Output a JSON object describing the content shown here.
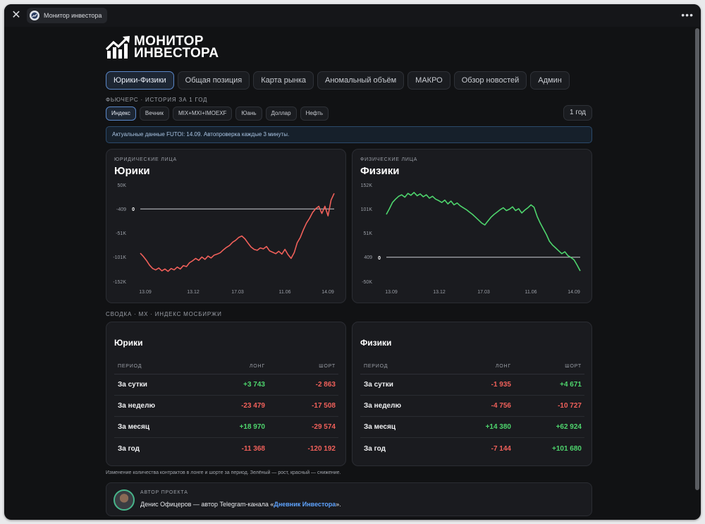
{
  "window": {
    "tab_title": "Монитор инвестора"
  },
  "logo": {
    "line1": "МОНИТОР",
    "line2": "ИНВЕСТОРА"
  },
  "nav": [
    "Юрики-Физики",
    "Общая позиция",
    "Карта рынка",
    "Аномальный объём",
    "МАКРО",
    "Обзор новостей",
    "Админ"
  ],
  "futures_label": "ФЬЮЧЕРС · ИСТОРИЯ ЗА 1 ГОД",
  "instruments": [
    "Индекс",
    "Вечник",
    "MIX+MXI+IMOEXF",
    "Юань",
    "Доллар",
    "Нефть"
  ],
  "period": "1 год",
  "notice": "Актуальные данные FUTOI: 14.09. Автопроверка каждые 3 минуты.",
  "summary_label": "СВОДКА · MX · ИНДЕКС МОСБИРЖИ",
  "footnote": "Изменение количества контрактов в лонге и шорте за период. Зелёный — рост, красный — снижение.",
  "author": {
    "kicker": "АВТОР ПРОЕКТА",
    "text": "Денис Офицеров — автор Telegram-канала «",
    "link": "Дневник Инвестора",
    "end": "»."
  },
  "colors": {
    "positive": "#4ed56d",
    "negative": "#f0605a",
    "accent": "#5a87c9"
  },
  "chart_data": [
    {
      "type": "line",
      "kicker": "ЮРИДИЧЕСКИЕ ЛИЦА",
      "title": "Юрики",
      "x_ticks": [
        "13.09",
        "13.12",
        "17.03",
        "11.06",
        "14.09"
      ],
      "y_ticks": [
        "50K",
        "-409",
        "-51K",
        "-101K",
        "-152K"
      ],
      "zero_label": "0",
      "ylim": [
        -152000,
        50000
      ],
      "zero_value": -409,
      "series": [
        {
          "color": "#f0605a",
          "values": [
            -93000,
            -100000,
            -108000,
            -118000,
            -125000,
            -128000,
            -124000,
            -130000,
            -126000,
            -131000,
            -125000,
            -128000,
            -122000,
            -126000,
            -119000,
            -121000,
            -113000,
            -109000,
            -104000,
            -108000,
            -101000,
            -106000,
            -99000,
            -103000,
            -97000,
            -95000,
            -92000,
            -86000,
            -81000,
            -77000,
            -70000,
            -66000,
            -60000,
            -57000,
            -63000,
            -72000,
            -80000,
            -85000,
            -87000,
            -82000,
            -84000,
            -79000,
            -88000,
            -91000,
            -94000,
            -89000,
            -95000,
            -85000,
            -96000,
            -104000,
            -92000,
            -71000,
            -60000,
            -44000,
            -30000,
            -20000,
            -8000,
            0,
            5000,
            -10000,
            5000,
            -15000,
            18000,
            32000
          ]
        }
      ]
    },
    {
      "type": "line",
      "kicker": "ФИЗИЧЕСКИЕ ЛИЦА",
      "title": "Физики",
      "x_ticks": [
        "13.09",
        "13.12",
        "17.03",
        "11.06",
        "14.09"
      ],
      "y_ticks": [
        "152K",
        "101K",
        "51K",
        "409",
        "-50K"
      ],
      "zero_label": "0",
      "ylim": [
        -50000,
        152000
      ],
      "zero_value": 409,
      "series": [
        {
          "color": "#4ed56d",
          "values": [
            90000,
            102000,
            115000,
            122000,
            128000,
            131000,
            126000,
            134000,
            130000,
            136000,
            129000,
            133000,
            127000,
            131000,
            124000,
            128000,
            122000,
            119000,
            115000,
            120000,
            112000,
            118000,
            110000,
            114000,
            108000,
            104000,
            100000,
            95000,
            90000,
            84000,
            78000,
            72000,
            68000,
            76000,
            84000,
            90000,
            95000,
            100000,
            104000,
            98000,
            101000,
            106000,
            98000,
            102000,
            93000,
            99000,
            104000,
            110000,
            105000,
            86000,
            72000,
            60000,
            48000,
            34000,
            26000,
            20000,
            14000,
            8000,
            12000,
            4000,
            0,
            -5000,
            -16000,
            -28000
          ]
        }
      ]
    }
  ],
  "summaries": [
    {
      "title": "Юрики",
      "headers": [
        "ПЕРИОД",
        "ЛОНГ",
        "ШОРТ"
      ],
      "rows": [
        {
          "period": "За сутки",
          "long": "+3 743",
          "short": "-2 863"
        },
        {
          "period": "За неделю",
          "long": "-23 479",
          "short": "-17 508"
        },
        {
          "period": "За месяц",
          "long": "+18 970",
          "short": "-29 574"
        },
        {
          "period": "За год",
          "long": "-11 368",
          "short": "-120 192"
        }
      ]
    },
    {
      "title": "Физики",
      "headers": [
        "ПЕРИОД",
        "ЛОНГ",
        "ШОРТ"
      ],
      "rows": [
        {
          "period": "За сутки",
          "long": "-1 935",
          "short": "+4 671"
        },
        {
          "period": "За неделю",
          "long": "-4 756",
          "short": "-10 727"
        },
        {
          "period": "За месяц",
          "long": "+14 380",
          "short": "+62 924"
        },
        {
          "period": "За год",
          "long": "-7 144",
          "short": "+101 680"
        }
      ]
    }
  ]
}
